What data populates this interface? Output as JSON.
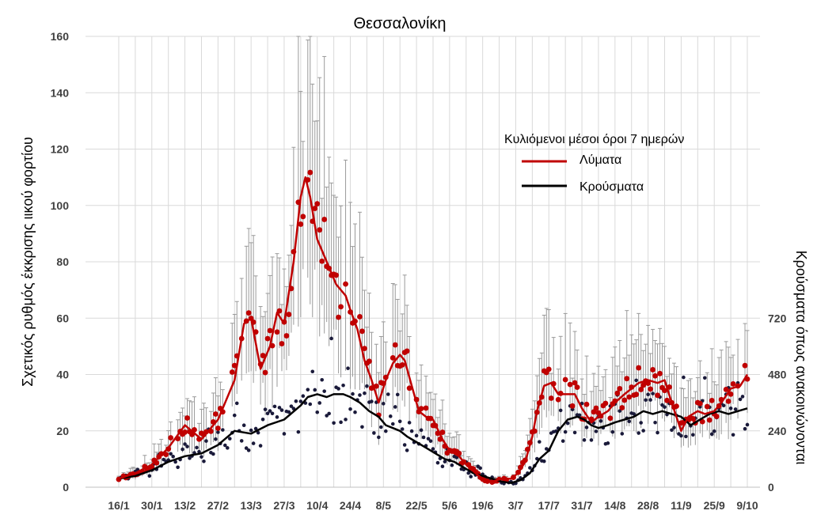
{
  "chart_data": {
    "type": "line",
    "title": "Θεσσαλονίκη",
    "ylabel": "Σχετικός ρυθμός έκκρισης ιικού φορτίου",
    "y2label": "Κρούσματα όπως ανακοινώνονται",
    "ylim": [
      0,
      160
    ],
    "y2lim": [
      0,
      1920
    ],
    "yticks": [
      "0",
      "20",
      "40",
      "60",
      "80",
      "100",
      "120",
      "140",
      "160"
    ],
    "y2ticks": [
      "0",
      "240",
      "480",
      "720"
    ],
    "x_start_label": "16/1",
    "x_end_index": 266,
    "xticks": [
      {
        "label": "16/1",
        "day": 0
      },
      {
        "label": "30/1",
        "day": 14
      },
      {
        "label": "13/2",
        "day": 28
      },
      {
        "label": "27/2",
        "day": 42
      },
      {
        "label": "13/3",
        "day": 56
      },
      {
        "label": "27/3",
        "day": 70
      },
      {
        "label": "10/4",
        "day": 84
      },
      {
        "label": "24/4",
        "day": 98
      },
      {
        "label": "8/5",
        "day": 112
      },
      {
        "label": "22/5",
        "day": 126
      },
      {
        "label": "5/6",
        "day": 140
      },
      {
        "label": "19/6",
        "day": 154
      },
      {
        "label": "3/7",
        "day": 168
      },
      {
        "label": "17/7",
        "day": 182
      },
      {
        "label": "31/7",
        "day": 196
      },
      {
        "label": "14/8",
        "day": 210
      },
      {
        "label": "28/8",
        "day": 224
      },
      {
        "label": "11/9",
        "day": 238
      },
      {
        "label": "25/9",
        "day": 252
      },
      {
        "label": "9/10",
        "day": 266
      }
    ],
    "legend": {
      "title": "Κυλιόμενοι μέσοι όροι 7 ημερών",
      "position": "top-right",
      "items": [
        {
          "name": "Λύματα",
          "color": "#c00000"
        },
        {
          "name": "Κρούσματα",
          "color": "#000000"
        }
      ]
    },
    "grid": true,
    "series": [
      {
        "name": "Λύματα",
        "kind": "line",
        "axis": "left",
        "color": "#c00000",
        "points": [
          [
            0,
            3
          ],
          [
            7,
            5
          ],
          [
            14,
            8
          ],
          [
            21,
            14
          ],
          [
            28,
            22
          ],
          [
            35,
            17
          ],
          [
            42,
            24
          ],
          [
            49,
            38
          ],
          [
            53,
            58
          ],
          [
            56,
            60
          ],
          [
            60,
            42
          ],
          [
            64,
            50
          ],
          [
            67,
            62
          ],
          [
            70,
            58
          ],
          [
            74,
            80
          ],
          [
            77,
            103
          ],
          [
            79,
            110
          ],
          [
            81,
            103
          ],
          [
            84,
            88
          ],
          [
            88,
            80
          ],
          [
            92,
            72
          ],
          [
            96,
            68
          ],
          [
            98,
            63
          ],
          [
            101,
            56
          ],
          [
            104,
            45
          ],
          [
            107,
            38
          ],
          [
            110,
            30
          ],
          [
            113,
            38
          ],
          [
            116,
            44
          ],
          [
            119,
            47
          ],
          [
            121,
            45
          ],
          [
            124,
            36
          ],
          [
            127,
            27
          ],
          [
            130,
            25
          ],
          [
            133,
            24
          ],
          [
            137,
            17
          ],
          [
            140,
            13
          ],
          [
            144,
            11
          ],
          [
            147,
            8
          ],
          [
            151,
            5
          ],
          [
            154,
            3
          ],
          [
            158,
            2
          ],
          [
            162,
            3
          ],
          [
            166,
            3
          ],
          [
            169,
            5
          ],
          [
            172,
            9
          ],
          [
            175,
            18
          ],
          [
            177,
            27
          ],
          [
            180,
            36
          ],
          [
            183,
            37
          ],
          [
            186,
            33
          ],
          [
            189,
            33
          ],
          [
            193,
            33
          ],
          [
            196,
            28
          ],
          [
            200,
            23
          ],
          [
            203,
            25
          ],
          [
            207,
            27
          ],
          [
            210,
            30
          ],
          [
            214,
            33
          ],
          [
            217,
            35
          ],
          [
            220,
            37
          ],
          [
            224,
            38
          ],
          [
            228,
            37
          ],
          [
            231,
            38
          ],
          [
            234,
            30
          ],
          [
            238,
            20
          ],
          [
            241,
            25
          ],
          [
            245,
            27
          ],
          [
            248,
            26
          ],
          [
            252,
            27
          ],
          [
            255,
            30
          ],
          [
            259,
            35
          ],
          [
            263,
            36
          ],
          [
            266,
            40
          ]
        ]
      },
      {
        "name": "Κρούσματα",
        "kind": "line",
        "axis": "right",
        "color": "#000000",
        "points": [
          [
            0,
            36
          ],
          [
            7,
            48
          ],
          [
            14,
            72
          ],
          [
            21,
            108
          ],
          [
            28,
            132
          ],
          [
            35,
            144
          ],
          [
            42,
            180
          ],
          [
            49,
            240
          ],
          [
            56,
            228
          ],
          [
            63,
            264
          ],
          [
            70,
            288
          ],
          [
            77,
            348
          ],
          [
            80,
            384
          ],
          [
            84,
            396
          ],
          [
            88,
            384
          ],
          [
            91,
            396
          ],
          [
            95,
            396
          ],
          [
            98,
            384
          ],
          [
            102,
            360
          ],
          [
            106,
            324
          ],
          [
            110,
            300
          ],
          [
            113,
            264
          ],
          [
            116,
            252
          ],
          [
            119,
            240
          ],
          [
            122,
            216
          ],
          [
            126,
            192
          ],
          [
            130,
            168
          ],
          [
            134,
            144
          ],
          [
            138,
            120
          ],
          [
            142,
            108
          ],
          [
            146,
            84
          ],
          [
            150,
            60
          ],
          [
            154,
            48
          ],
          [
            158,
            36
          ],
          [
            162,
            24
          ],
          [
            166,
            18
          ],
          [
            170,
            30
          ],
          [
            174,
            60
          ],
          [
            178,
            120
          ],
          [
            182,
            156
          ],
          [
            186,
            240
          ],
          [
            190,
            288
          ],
          [
            194,
            300
          ],
          [
            197,
            288
          ],
          [
            200,
            264
          ],
          [
            203,
            252
          ],
          [
            207,
            264
          ],
          [
            210,
            276
          ],
          [
            214,
            288
          ],
          [
            218,
            300
          ],
          [
            222,
            324
          ],
          [
            226,
            312
          ],
          [
            230,
            324
          ],
          [
            234,
            312
          ],
          [
            238,
            300
          ],
          [
            242,
            264
          ],
          [
            246,
            288
          ],
          [
            250,
            312
          ],
          [
            254,
            324
          ],
          [
            258,
            312
          ],
          [
            262,
            324
          ],
          [
            266,
            336
          ]
        ]
      },
      {
        "name": "",
        "kind": "scatter",
        "axis": "left",
        "color": "#c00000",
        "seed": 11,
        "spread": 0.16,
        "errorbars": true,
        "error_frac": 0.45
      },
      {
        "name": "",
        "kind": "scatter",
        "axis": "right",
        "color": "#1a1a3a",
        "seed": 29,
        "spread": 0.32,
        "errorbars": false
      }
    ]
  }
}
